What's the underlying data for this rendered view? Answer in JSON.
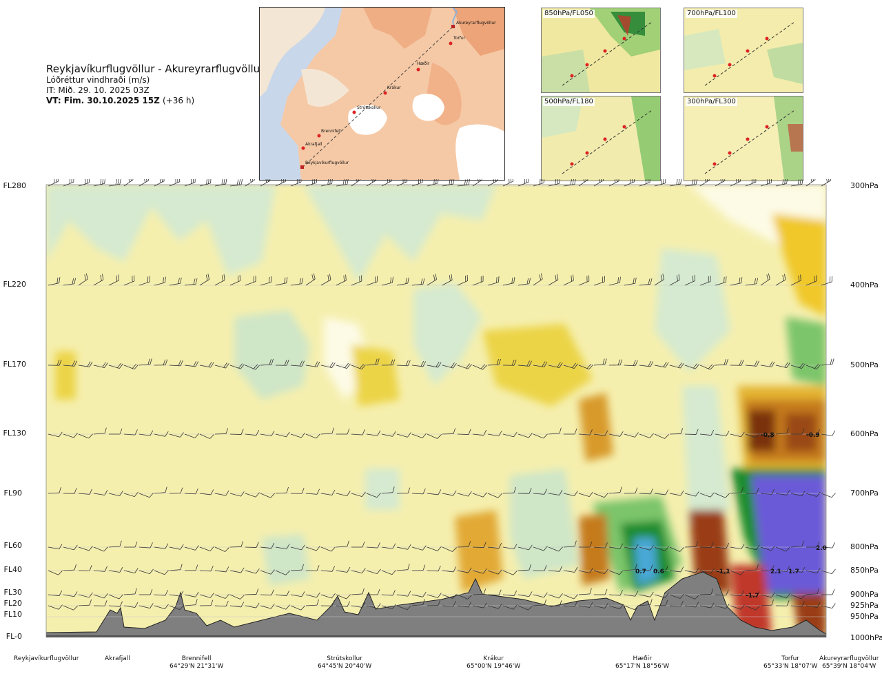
{
  "header": {
    "title": "Reykjavíkurflugvöllur - Akureyrarflugvöllur",
    "subtitle": "Lóðréttur vindhraði (m/s)",
    "init_time": "IT: Mið. 29. 10. 2025 03Z",
    "valid_time": "VT: Fim. 30.10.2025 15Z",
    "valid_offset": "(+36 h)"
  },
  "map": {
    "waypoints": [
      {
        "name": "Akureyrarflugvöllur"
      },
      {
        "name": "Torfur"
      },
      {
        "name": "Hæðir"
      },
      {
        "name": "Krákur"
      },
      {
        "name": "Strútskollur"
      },
      {
        "name": "Brennifell"
      },
      {
        "name": "Akrafjall"
      },
      {
        "name": "Reykjavíkurflugvöllur"
      }
    ]
  },
  "thumbnails": [
    {
      "label": "850hPa/FL050"
    },
    {
      "label": "700hPa/FL100"
    },
    {
      "label": "500hPa/FL180"
    },
    {
      "label": "300hPa/FL300"
    }
  ],
  "colors": {
    "terrain": "#7f7f7f",
    "strong_down": "#7a3210",
    "down": "#c57a1b",
    "weak_down": "#e8c53a",
    "slight_down": "#f3eca6",
    "neutral": "#fdfbe6",
    "slight_up": "#d7ecd2",
    "up": "#1d8d2e",
    "strong_up": "#6a5ad8"
  },
  "chart_data": {
    "type": "heatmap",
    "variable": "Lóðréttur vindhraði (m/s)",
    "left_axis": [
      "FL280",
      "FL220",
      "FL170",
      "FL130",
      "FL90",
      "FL60",
      "FL40",
      "FL30",
      "FL20",
      "FL10",
      "FL-0"
    ],
    "right_axis": [
      "300hPa",
      "400hPa",
      "500hPa",
      "600hPa",
      "700hPa",
      "800hPa",
      "850hPa",
      "900hPa",
      "925hPa",
      "950hPa",
      "1000hPa"
    ],
    "pressure_levels_hpa": [
      300,
      400,
      500,
      600,
      700,
      800,
      850,
      900,
      925,
      950,
      1000
    ],
    "locations": [
      {
        "name": "Reykjavíkurflugvöllur",
        "coord": ""
      },
      {
        "name": "Akrafjall",
        "coord": ""
      },
      {
        "name": "Brennifell",
        "coord": "64°29'N 21°31'W"
      },
      {
        "name": "Strútskollur",
        "coord": "64°45'N 20°40'W"
      },
      {
        "name": "Krákur",
        "coord": "65°00'N 19°46'W"
      },
      {
        "name": "Hæðir",
        "coord": "65°17'N 18°56'W"
      },
      {
        "name": "Torfur",
        "coord": "65°33'N 18°07'W"
      },
      {
        "name": "Akureyrarflugvöllur",
        "coord": "65°39'N 18°04'W"
      }
    ],
    "annotations": [
      {
        "text": "-0.8",
        "near": "Torfur",
        "level_hpa": 600
      },
      {
        "text": "-0.9",
        "near": "Akureyrarflugvöllur",
        "level_hpa": 600
      },
      {
        "text": "2.0",
        "near": "Akureyrarflugvöllur",
        "level_hpa": 800
      },
      {
        "text": "0.7",
        "near": "Hæðir",
        "level_hpa": 850
      },
      {
        "text": "0.6",
        "near": "Hæðir",
        "level_hpa": 850
      },
      {
        "text": "-1.1",
        "near": "Torfur",
        "level_hpa": 850
      },
      {
        "text": "2.1",
        "near": "Torfur",
        "level_hpa": 850
      },
      {
        "text": "1.7",
        "near": "Akureyrarflugvöllur",
        "level_hpa": 850
      },
      {
        "text": "-1.7",
        "near": "Torfur",
        "level_hpa": 900
      }
    ]
  }
}
